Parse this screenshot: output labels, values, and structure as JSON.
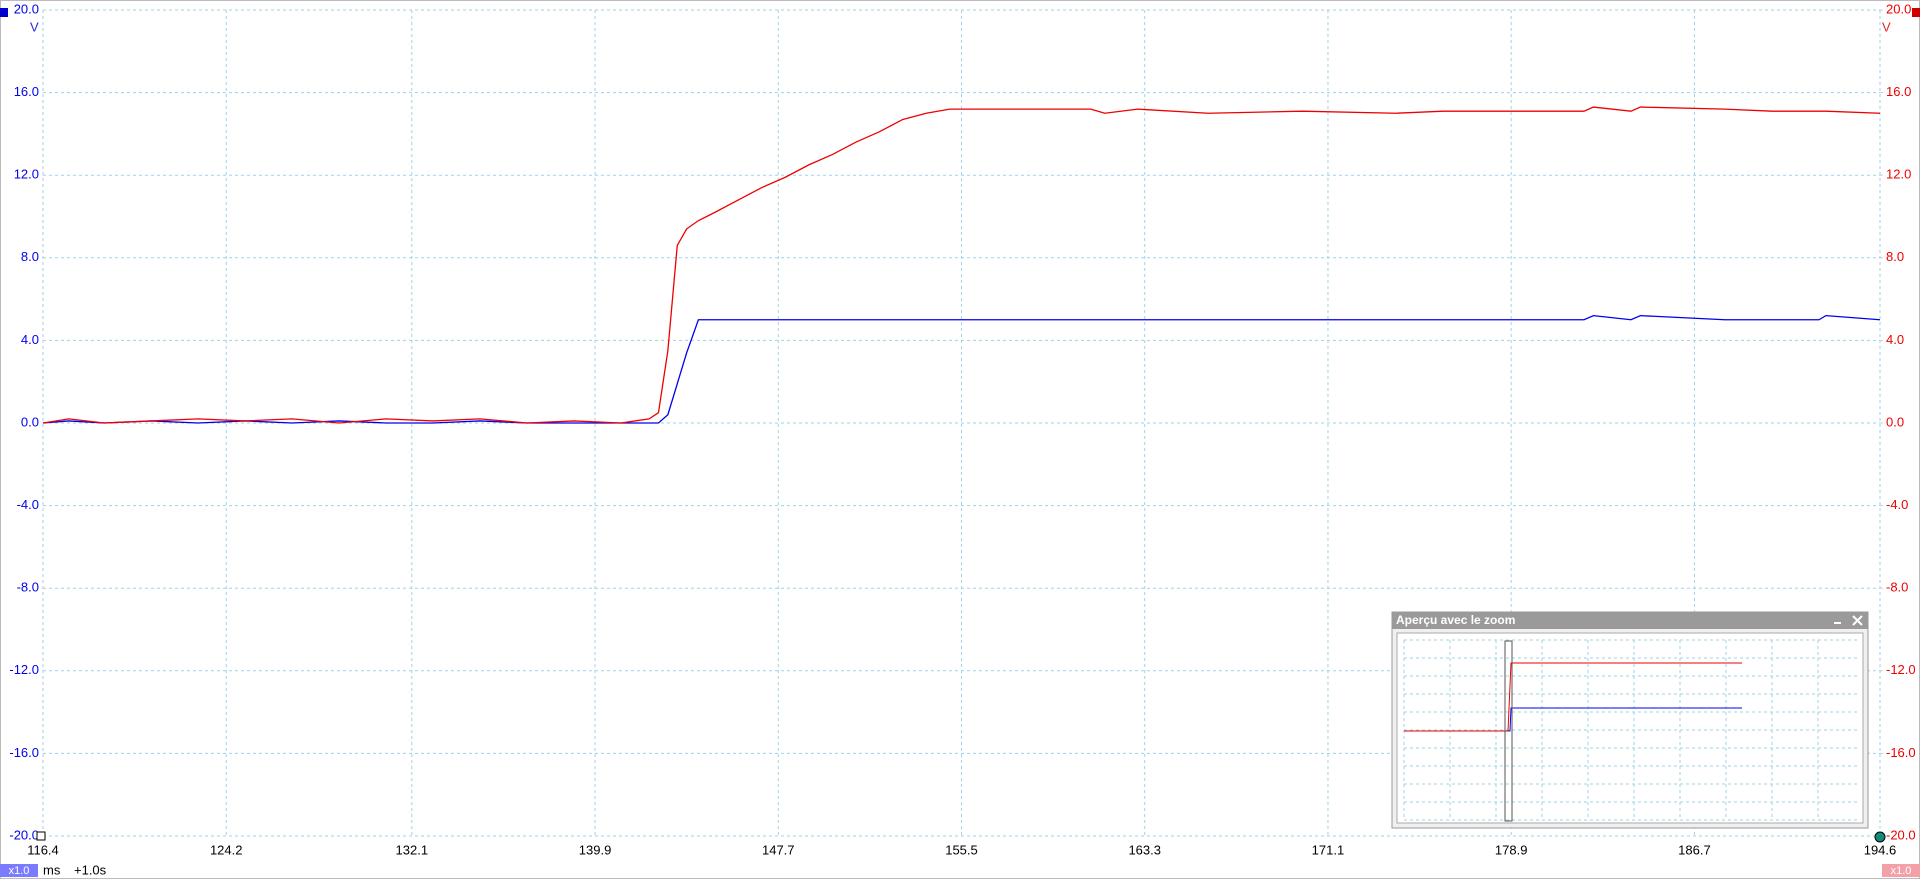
{
  "chart_data": {
    "type": "line",
    "y_unit": "V",
    "x_unit": "ms",
    "time_offset": "+1.0s",
    "channel_a_scale": "x1.0",
    "channel_b_scale": "x1.0",
    "zoom_title": "Aperçu avec le zoom",
    "grid": true,
    "xlim": [
      116.4,
      194.6
    ],
    "xticks": [
      116.4,
      124.2,
      132.1,
      139.9,
      147.7,
      155.5,
      163.3,
      171.1,
      178.9,
      186.7,
      194.6
    ],
    "ylim": [
      -20,
      20
    ],
    "yticks": [
      {
        "value": 20,
        "label": "20.0"
      },
      {
        "value": 16,
        "label": "16.0"
      },
      {
        "value": 12,
        "label": "12.0"
      },
      {
        "value": 8,
        "label": "8.0"
      },
      {
        "value": 4,
        "label": "4.0"
      },
      {
        "value": 0,
        "label": "0.0"
      },
      {
        "value": -4,
        "label": "-4.0"
      },
      {
        "value": -8,
        "label": "-8.0"
      },
      {
        "value": -12,
        "label": "-12.0"
      },
      {
        "value": -16,
        "label": "-16.0"
      },
      {
        "value": -20,
        "label": "-20.0"
      }
    ],
    "y2lim": [
      -20,
      20
    ],
    "y2ticks": [
      {
        "value": 20,
        "label": "20.0"
      },
      {
        "value": 16,
        "label": "16.0"
      },
      {
        "value": 12,
        "label": "12.0"
      },
      {
        "value": 8,
        "label": "8.0"
      },
      {
        "value": 4,
        "label": "4.0"
      },
      {
        "value": 0,
        "label": "0.0"
      },
      {
        "value": -4,
        "label": "-4.0"
      },
      {
        "value": -8,
        "label": "-8.0"
      },
      {
        "value": -12,
        "label": "-12.0"
      },
      {
        "value": -16,
        "label": "-16.0"
      },
      {
        "value": -20,
        "label": "-20.0"
      }
    ],
    "x": [
      116.4,
      117.5,
      119.0,
      121.0,
      123.0,
      125.0,
      127.0,
      129.0,
      131.0,
      133.0,
      135.0,
      137.0,
      139.0,
      141.0,
      142.2,
      142.6,
      143.0,
      143.4,
      143.8,
      144.3,
      145.0,
      146.0,
      147.0,
      148.0,
      149.0,
      150.0,
      151.0,
      152.0,
      153.0,
      154.0,
      155.0,
      158.0,
      161.0,
      161.6,
      163.0,
      166.0,
      170.0,
      174.0,
      176.0,
      178.0,
      182.0,
      182.4,
      184.0,
      184.4,
      188.0,
      190.0,
      192.0,
      192.3,
      194.6
    ],
    "series": [
      {
        "color": "#0000ee",
        "axis": "y",
        "values": [
          0,
          0.1,
          0,
          0.1,
          0,
          0.1,
          0,
          0.1,
          0,
          0,
          0.1,
          0,
          0,
          0,
          0,
          0,
          0.4,
          1.9,
          3.4,
          5.0,
          5.0,
          5.0,
          5.0,
          5.0,
          5.0,
          5.0,
          5.0,
          5.0,
          5.0,
          5.0,
          5.0,
          5.0,
          5.0,
          5.0,
          5.0,
          5.0,
          5.0,
          5.0,
          5.0,
          5.0,
          5.0,
          5.2,
          5.0,
          5.2,
          5.0,
          5.0,
          5.0,
          5.2,
          5.0
        ]
      },
      {
        "color": "#ee0000",
        "axis": "y2",
        "values": [
          0,
          0.2,
          0,
          0.1,
          0.2,
          0.1,
          0.2,
          0,
          0.2,
          0.1,
          0.2,
          0,
          0.1,
          0,
          0.2,
          0.5,
          3.5,
          8.6,
          9.4,
          9.8,
          10.2,
          10.8,
          11.4,
          11.9,
          12.5,
          13.0,
          13.6,
          14.1,
          14.7,
          15.0,
          15.2,
          15.2,
          15.2,
          15.0,
          15.2,
          15.0,
          15.1,
          15.0,
          15.1,
          15.1,
          15.1,
          15.3,
          15.1,
          15.3,
          15.2,
          15.1,
          15.1,
          15.1,
          15.0
        ]
      }
    ]
  }
}
